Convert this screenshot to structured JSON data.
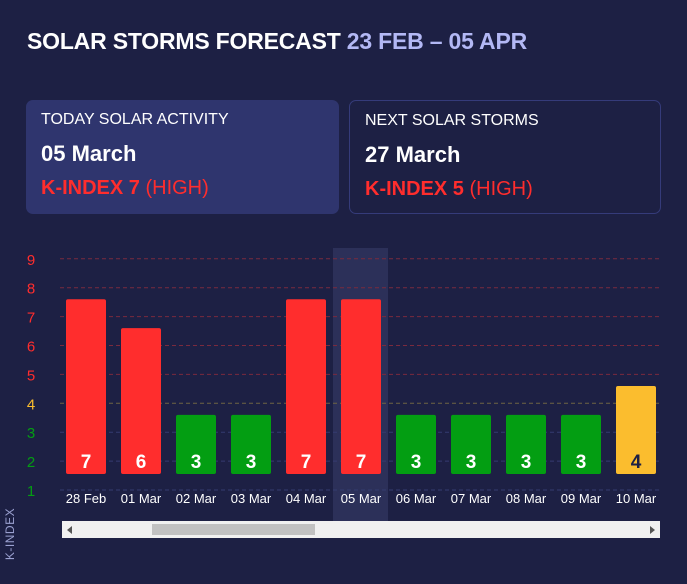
{
  "header": {
    "title": "SOLAR STORMS FORECAST",
    "range": "23 FEB – 05 APR"
  },
  "today": {
    "label": "TODAY SOLAR ACTIVITY",
    "date": "05 March",
    "kindex": "K-INDEX 7",
    "level": "(HIGH)"
  },
  "next": {
    "label": "NEXT SOLAR STORMS",
    "date": "27 March",
    "kindex": "K-INDEX 5",
    "level": "(HIGH)"
  },
  "colors": {
    "high": "#ff2d2d",
    "medium": "#fbbd2e",
    "low": "#039e12",
    "highlight": "#2c3059"
  },
  "scrollbar": {
    "position": 0.15
  },
  "chart_data": {
    "type": "bar",
    "ylabel": "K-INDEX",
    "ylim": [
      1,
      9
    ],
    "yticks": [
      1,
      2,
      3,
      4,
      5,
      6,
      7,
      8,
      9
    ],
    "categories": [
      "28 Feb",
      "01 Mar",
      "02 Mar",
      "03 Mar",
      "04 Mar",
      "05 Mar",
      "06 Mar",
      "07 Mar",
      "08 Mar",
      "09 Mar",
      "10 Mar"
    ],
    "values": [
      7,
      6,
      3,
      3,
      7,
      7,
      3,
      3,
      3,
      3,
      4
    ],
    "highlighted": "05 Mar",
    "grid": true
  }
}
